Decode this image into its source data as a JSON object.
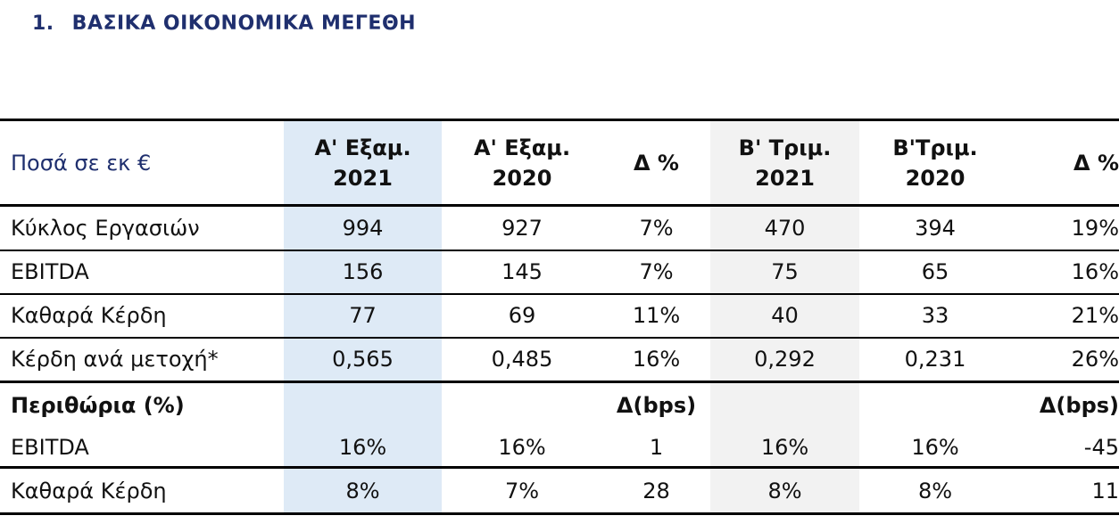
{
  "section": {
    "number": "1.",
    "title": "ΒΑΣΙΚΑ ΟΙΚΟΝΟΜΙΚΑ ΜΕΓΕΘΗ"
  },
  "table": {
    "header": {
      "label": "Ποσά σε εκ €",
      "col1_line1": "Α' Εξαμ.",
      "col1_line2": "2021",
      "col2_line1": "Α' Εξαμ.",
      "col2_line2": "2020",
      "col3": "Δ %",
      "col4_line1": "Β' Τριμ.",
      "col4_line2": "2021",
      "col5_line1": "Β'Τριμ.",
      "col5_line2": "2020",
      "col6": "Δ %"
    },
    "rows": [
      {
        "label": "Κύκλος Εργασιών",
        "h1_2021": "994",
        "h1_2020": "927",
        "h1_delta": "7%",
        "q2_2021": "470",
        "q2_2020": "394",
        "q2_delta": "19%"
      },
      {
        "label": "EBITDA",
        "h1_2021": "156",
        "h1_2020": "145",
        "h1_delta": "7%",
        "q2_2021": "75",
        "q2_2020": "65",
        "q2_delta": "16%"
      },
      {
        "label": "Καθαρά Κέρδη",
        "h1_2021": "77",
        "h1_2020": "69",
        "h1_delta": "11%",
        "q2_2021": "40",
        "q2_2020": "33",
        "q2_delta": "21%"
      },
      {
        "label": "Κέρδη ανά μετοχή*",
        "h1_2021": "0,565",
        "h1_2020": "0,485",
        "h1_delta": "16%",
        "q2_2021": "0,292",
        "q2_2020": "0,231",
        "q2_delta": "26%"
      }
    ],
    "margins_header": {
      "label": "Περιθώρια (%)",
      "delta1": "Δ(bps)",
      "delta2": "Δ(bps)"
    },
    "margin_rows": [
      {
        "label": "EBITDA",
        "h1_2021": "16%",
        "h1_2020": "16%",
        "h1_delta": "1",
        "q2_2021": "16%",
        "q2_2020": "16%",
        "q2_delta": "-45"
      },
      {
        "label": "Καθαρά Κέρδη",
        "h1_2021": "8%",
        "h1_2020": "7%",
        "h1_delta": "28",
        "q2_2021": "8%",
        "q2_2020": "8%",
        "q2_delta": "11"
      }
    ]
  },
  "colors": {
    "heading": "#1f2f6e",
    "shade_blue": "#deeaf6",
    "shade_grey": "#f2f2f2"
  }
}
